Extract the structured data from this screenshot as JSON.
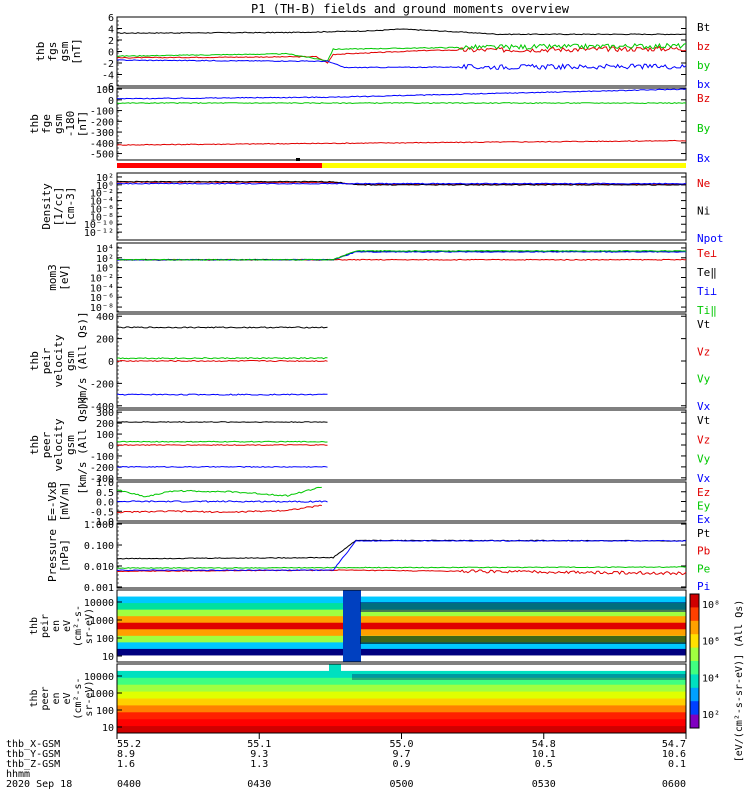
{
  "title": "P1 (TH-B) fields and ground moments overview",
  "colors": {
    "black": "#000000",
    "red": "#e00000",
    "green": "#00c800",
    "blue": "#0000ff",
    "orange": "#ff8c00",
    "bar_red": "#ff0000",
    "bar_yellow": "#ffff00"
  },
  "chart_data": [
    {
      "id": "fgs",
      "type": "line",
      "ylabel": [
        "thb",
        "fgs",
        "gsm",
        "[nT]"
      ],
      "ylim": [
        -6,
        6
      ],
      "yticks": [
        "6",
        "4",
        "2",
        "0",
        "-2",
        "-4",
        "-6"
      ],
      "series": [
        {
          "name": "Bt",
          "color": "black",
          "values": [
            [
              0,
              3.2
            ],
            [
              30,
              3.3
            ],
            [
              45,
              3.6
            ],
            [
              50,
              3.9
            ],
            [
              60,
              3.4
            ],
            [
              67,
              3.0
            ],
            [
              100,
              3.0
            ]
          ]
        },
        {
          "name": "bz",
          "color": "red",
          "values": [
            [
              0,
              -1.1
            ],
            [
              35,
              -0.9
            ],
            [
              37,
              -2.0
            ],
            [
              38,
              -0.5
            ],
            [
              55,
              0.2
            ],
            [
              100,
              0.5
            ]
          ]
        },
        {
          "name": "by",
          "color": "green",
          "values": [
            [
              0,
              -0.8
            ],
            [
              30,
              -0.4
            ],
            [
              37,
              -1.6
            ],
            [
              38,
              0.4
            ],
            [
              60,
              0.7
            ],
            [
              100,
              1.0
            ]
          ]
        },
        {
          "name": "bx",
          "color": "blue",
          "values": [
            [
              0,
              -1.5
            ],
            [
              37,
              -1.7
            ],
            [
              40,
              -2.8
            ],
            [
              60,
              -2.7
            ],
            [
              100,
              -2.6
            ]
          ]
        }
      ]
    },
    {
      "id": "fge",
      "type": "line",
      "ylabel": [
        "thb",
        "fge",
        "gsm",
        "-180",
        "[nT]"
      ],
      "ylim": [
        -560,
        110
      ],
      "yticks": [
        "100",
        "0",
        "-100",
        "-200",
        "-300",
        "-400",
        "-500"
      ],
      "series": [
        {
          "name": "Bz",
          "color": "red",
          "values": [
            [
              0,
              -420
            ],
            [
              100,
              -380
            ]
          ]
        },
        {
          "name": "By",
          "color": "green",
          "values": [
            [
              0,
              -30
            ],
            [
              100,
              -30
            ]
          ]
        },
        {
          "name": "Bx",
          "color": "blue",
          "values": [
            [
              0,
              10
            ],
            [
              38,
              25
            ],
            [
              100,
              100
            ]
          ]
        }
      ]
    },
    {
      "id": "density",
      "type": "line",
      "log": true,
      "ylabel": [
        "Density",
        "[1/cc]",
        "[cm-3]"
      ],
      "ylim": [
        -14,
        3
      ],
      "yticks": [
        "10²",
        "10⁰",
        "10⁻²",
        "10⁻⁴",
        "10⁻⁶",
        "10⁻⁸",
        "10⁻¹⁰",
        "10⁻¹²"
      ],
      "series": [
        {
          "name": "Ne",
          "color": "red",
          "values": [
            [
              0,
              0.7
            ],
            [
              38,
              0.6
            ],
            [
              42,
              0.1
            ],
            [
              100,
              0.2
            ]
          ]
        },
        {
          "name": "Ni",
          "color": "black",
          "values": [
            [
              0,
              0.8
            ],
            [
              38,
              0.8
            ],
            [
              42,
              0.0
            ],
            [
              100,
              0.0
            ]
          ]
        },
        {
          "name": "Npot",
          "color": "blue",
          "values": [
            [
              0,
              0.3
            ],
            [
              100,
              0.3
            ]
          ]
        }
      ]
    },
    {
      "id": "temp",
      "type": "line",
      "log": true,
      "ylabel": [
        "mom3",
        "[eV]"
      ],
      "ylim": [
        -9,
        5
      ],
      "yticks": [
        "10⁴",
        "10²",
        "10⁰",
        "10⁻²",
        "10⁻⁴",
        "10⁻⁶",
        "10⁻⁸"
      ],
      "series": [
        {
          "name": "Te⊥",
          "color": "red",
          "values": [
            [
              0,
              1.6
            ],
            [
              100,
              1.6
            ]
          ]
        },
        {
          "name": "Te‖",
          "color": "black",
          "values": [
            [
              0,
              1.6
            ],
            [
              38,
              1.6
            ],
            [
              42,
              3.3
            ],
            [
              100,
              3.3
            ]
          ]
        },
        {
          "name": "Ti⊥",
          "color": "blue",
          "values": [
            [
              0,
              1.6
            ],
            [
              38,
              1.6
            ],
            [
              42,
              3.2
            ],
            [
              100,
              3.2
            ]
          ]
        },
        {
          "name": "Ti‖",
          "color": "green",
          "values": [
            [
              0,
              1.6
            ],
            [
              38,
              1.6
            ],
            [
              42,
              3.4
            ],
            [
              100,
              3.4
            ]
          ]
        }
      ]
    },
    {
      "id": "peir_v",
      "type": "line",
      "ylabel": [
        "thb",
        "peir",
        "velocity",
        "gsm",
        "[km/s (All Qs)]"
      ],
      "ylim": [
        -420,
        420
      ],
      "yticks": [
        "400",
        "200",
        "0",
        "-200",
        "-400"
      ],
      "series": [
        {
          "name": "Vt",
          "color": "black",
          "values": [
            [
              0,
              300
            ],
            [
              37,
              300
            ]
          ]
        },
        {
          "name": "Vz",
          "color": "red",
          "values": [
            [
              0,
              0
            ],
            [
              37,
              0
            ]
          ]
        },
        {
          "name": "Vy",
          "color": "green",
          "values": [
            [
              0,
              25
            ],
            [
              37,
              25
            ]
          ]
        },
        {
          "name": "Vx",
          "color": "blue",
          "values": [
            [
              0,
              -300
            ],
            [
              37,
              -300
            ]
          ]
        }
      ]
    },
    {
      "id": "peer_v",
      "type": "line",
      "ylabel": [
        "thb",
        "peer",
        "velocity",
        "gsm",
        "[km/s (All Qs)]"
      ],
      "ylim": [
        -320,
        320
      ],
      "yticks": [
        "300",
        "200",
        "100",
        "0",
        "-100",
        "-200",
        "-300"
      ],
      "series": [
        {
          "name": "Vt",
          "color": "black",
          "values": [
            [
              0,
              210
            ],
            [
              37,
              210
            ]
          ]
        },
        {
          "name": "Vz",
          "color": "red",
          "values": [
            [
              0,
              0
            ],
            [
              37,
              0
            ]
          ]
        },
        {
          "name": "Vy",
          "color": "green",
          "values": [
            [
              0,
              30
            ],
            [
              37,
              30
            ]
          ]
        },
        {
          "name": "Vx",
          "color": "blue",
          "values": [
            [
              0,
              -200
            ],
            [
              37,
              -200
            ]
          ]
        }
      ]
    },
    {
      "id": "efield",
      "type": "line",
      "ylabel": [
        "E=-VxB",
        "[mV/m]"
      ],
      "ylim": [
        -1.0,
        1.0
      ],
      "yticks": [
        "1.0",
        "0.5",
        "0.0",
        "-0.5",
        "-1.0"
      ],
      "series": [
        {
          "name": "Ez",
          "color": "red",
          "values": [
            [
              0,
              -0.55
            ],
            [
              10,
              -0.5
            ],
            [
              20,
              -0.55
            ],
            [
              30,
              -0.45
            ],
            [
              36,
              -0.2
            ]
          ]
        },
        {
          "name": "Ey",
          "color": "green",
          "values": [
            [
              0,
              0.6
            ],
            [
              5,
              0.25
            ],
            [
              10,
              0.55
            ],
            [
              20,
              0.5
            ],
            [
              30,
              0.3
            ],
            [
              36,
              0.75
            ]
          ]
        },
        {
          "name": "Ex",
          "color": "blue",
          "values": [
            [
              0,
              0.0
            ],
            [
              37,
              0.0
            ]
          ]
        }
      ]
    },
    {
      "id": "pressure",
      "type": "line",
      "log": true,
      "ylabel": [
        "Pressure",
        "[nPa]"
      ],
      "ylim": [
        -3.05,
        0.05
      ],
      "yticks": [
        "1.000",
        "0.100",
        "0.010",
        "0.001"
      ],
      "series": [
        {
          "name": "Pt",
          "color": "black",
          "values": [
            [
              0,
              -1.65
            ],
            [
              38,
              -1.6
            ],
            [
              42,
              -0.78
            ],
            [
              100,
              -0.8
            ]
          ]
        },
        {
          "name": "Pb",
          "color": "red",
          "values": [
            [
              0,
              -2.25
            ],
            [
              40,
              -2.2
            ],
            [
              100,
              -2.35
            ]
          ]
        },
        {
          "name": "Pe",
          "color": "green",
          "values": [
            [
              0,
              -2.1
            ],
            [
              100,
              -2.05
            ]
          ]
        },
        {
          "name": "Pi",
          "color": "blue",
          "values": [
            [
              0,
              -2.2
            ],
            [
              38,
              -2.2
            ],
            [
              42,
              -0.8
            ],
            [
              100,
              -0.8
            ]
          ]
        }
      ]
    }
  ],
  "spectrograms": [
    {
      "id": "peir_eflux",
      "ylabel": [
        "thb",
        "peir",
        "en",
        "eV",
        "(cm²-s-",
        "sr-eV)"
      ],
      "yticks": [
        "10000",
        "1000",
        "100",
        "10"
      ]
    },
    {
      "id": "peer_eflux",
      "ylabel": [
        "thb",
        "peer",
        "en",
        "eV",
        "(cm²-s-",
        "sr-eV)"
      ],
      "yticks": [
        "10000",
        "1000",
        "100",
        "10"
      ]
    }
  ],
  "colorbar": {
    "label": "[eV/(cm²-s-sr-eV)] (All Qs)",
    "ticks": [
      "10⁸",
      "10⁶",
      "10⁴",
      "10²"
    ]
  },
  "footer": {
    "row_labels": [
      "thb_X-GSM",
      "thb_Y-GSM",
      "thb_Z-GSM",
      "hhmm",
      "2020 Sep 18"
    ],
    "columns": [
      {
        "x": 55.2,
        "y": 8.9,
        "z": 1.6,
        "time": "0400"
      },
      {
        "x": 55.1,
        "y": 9.3,
        "z": 1.3,
        "time": "0430"
      },
      {
        "x": 55.0,
        "y": 9.7,
        "z": 0.9,
        "time": "0500"
      },
      {
        "x": 54.8,
        "y": 10.1,
        "z": 0.5,
        "time": "0530"
      },
      {
        "x": 54.7,
        "y": 10.6,
        "z": 0.1,
        "time": "0600"
      }
    ]
  }
}
